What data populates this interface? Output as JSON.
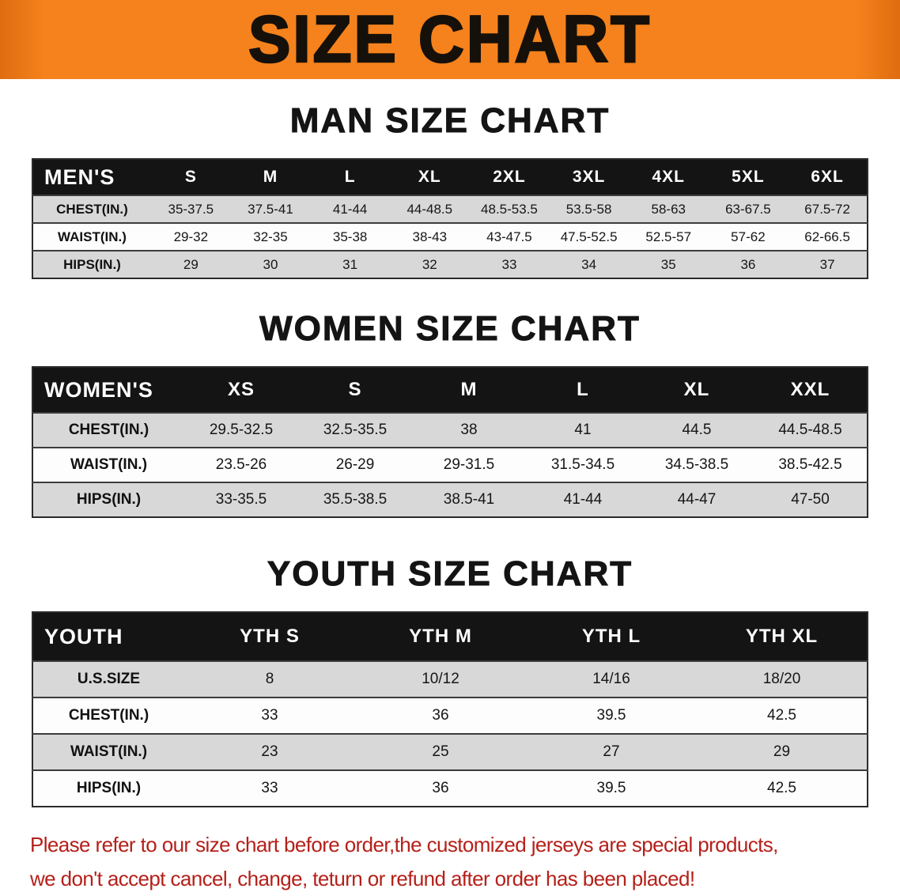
{
  "banner": {
    "title": "SIZE CHART"
  },
  "sections": [
    {
      "heading": "MAN SIZE CHART",
      "table": {
        "header_label": "MEN'S",
        "columns": [
          "S",
          "M",
          "L",
          "XL",
          "2XL",
          "3XL",
          "4XL",
          "5XL",
          "6XL"
        ],
        "rows": [
          {
            "label": "CHEST(IN.)",
            "values": [
              "35-37.5",
              "37.5-41",
              "41-44",
              "44-48.5",
              "48.5-53.5",
              "53.5-58",
              "58-63",
              "63-67.5",
              "67.5-72"
            ]
          },
          {
            "label": "WAIST(IN.)",
            "values": [
              "29-32",
              "32-35",
              "35-38",
              "38-43",
              "43-47.5",
              "47.5-52.5",
              "52.5-57",
              "57-62",
              "62-66.5"
            ]
          },
          {
            "label": "HIPS(IN.)",
            "values": [
              "29",
              "30",
              "31",
              "32",
              "33",
              "34",
              "35",
              "36",
              "37"
            ]
          }
        ]
      }
    },
    {
      "heading": "WOMEN SIZE CHART",
      "table": {
        "header_label": "WOMEN'S",
        "columns": [
          "XS",
          "S",
          "M",
          "L",
          "XL",
          "XXL"
        ],
        "rows": [
          {
            "label": "CHEST(IN.)",
            "values": [
              "29.5-32.5",
              "32.5-35.5",
              "38",
              "41",
              "44.5",
              "44.5-48.5"
            ]
          },
          {
            "label": "WAIST(IN.)",
            "values": [
              "23.5-26",
              "26-29",
              "29-31.5",
              "31.5-34.5",
              "34.5-38.5",
              "38.5-42.5"
            ]
          },
          {
            "label": "HIPS(IN.)",
            "values": [
              "33-35.5",
              "35.5-38.5",
              "38.5-41",
              "41-44",
              "44-47",
              "47-50"
            ]
          }
        ]
      }
    },
    {
      "heading": "YOUTH SIZE CHART",
      "table": {
        "header_label": "YOUTH",
        "columns": [
          "YTH S",
          "YTH M",
          "YTH L",
          "YTH XL"
        ],
        "rows": [
          {
            "label": "U.S.SIZE",
            "values": [
              "8",
              "10/12",
              "14/16",
              "18/20"
            ]
          },
          {
            "label": "CHEST(IN.)",
            "values": [
              "33",
              "36",
              "39.5",
              "42.5"
            ]
          },
          {
            "label": "WAIST(IN.)",
            "values": [
              "23",
              "25",
              "27",
              "29"
            ]
          },
          {
            "label": "HIPS(IN.)",
            "values": [
              "33",
              "36",
              "39.5",
              "42.5"
            ]
          }
        ]
      }
    }
  ],
  "footer": {
    "line1": "Please refer to our size chart before order,the customized jerseys are special products,",
    "line2": "we don't accept cancel, change, teturn or refund after order has been placed!"
  },
  "colors": {
    "banner_bg": "#f5821c",
    "table_header_bg": "#141414",
    "row_shade": "#d8d8d8",
    "row_plain": "#fdfdfd",
    "table_border": "#2b2b2b",
    "footer_text": "#b5201a"
  }
}
